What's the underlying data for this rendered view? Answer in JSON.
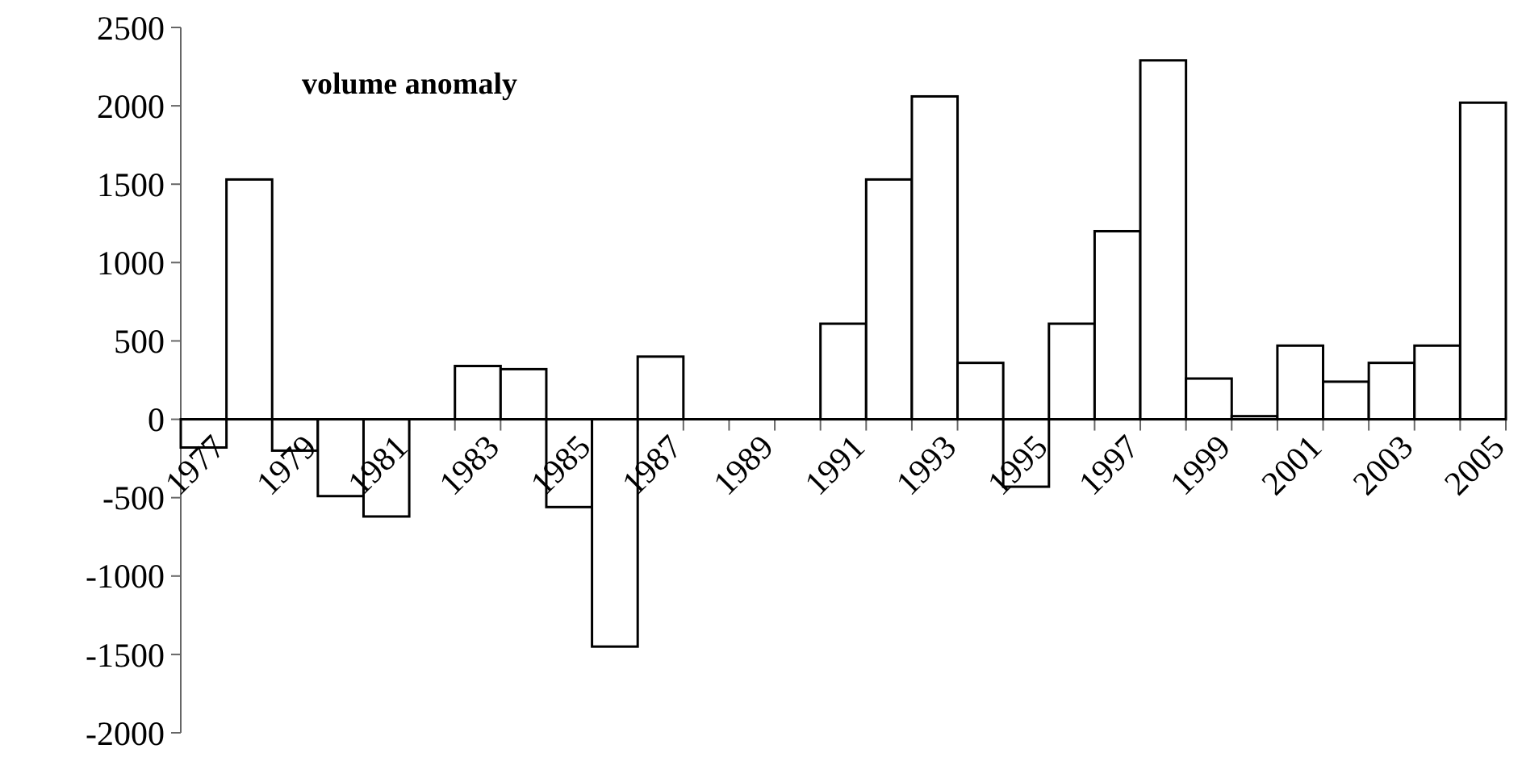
{
  "chart_data": {
    "type": "bar",
    "title": "volume anomaly",
    "categories": [
      "1977",
      null,
      "1979",
      null,
      "1981",
      null,
      "1983",
      null,
      "1985",
      null,
      "1987",
      null,
      "1989",
      null,
      "1991",
      null,
      "1993",
      null,
      "1995",
      null,
      "1997",
      null,
      "1999",
      null,
      "2001",
      null,
      "2003",
      null,
      "2005"
    ],
    "values": [
      -180,
      1530,
      -200,
      -490,
      -620,
      null,
      340,
      320,
      -560,
      -1450,
      400,
      null,
      null,
      null,
      610,
      1530,
      2060,
      360,
      -430,
      610,
      1200,
      2290,
      260,
      20,
      470,
      240,
      360,
      470,
      2020
    ],
    "color": "#ffffff",
    "ylim": [
      -2000,
      2500
    ],
    "yticks": [
      -2000,
      -1500,
      -1000,
      -500,
      0,
      500,
      1000,
      1500,
      2000,
      2500
    ],
    "grid": false
  }
}
